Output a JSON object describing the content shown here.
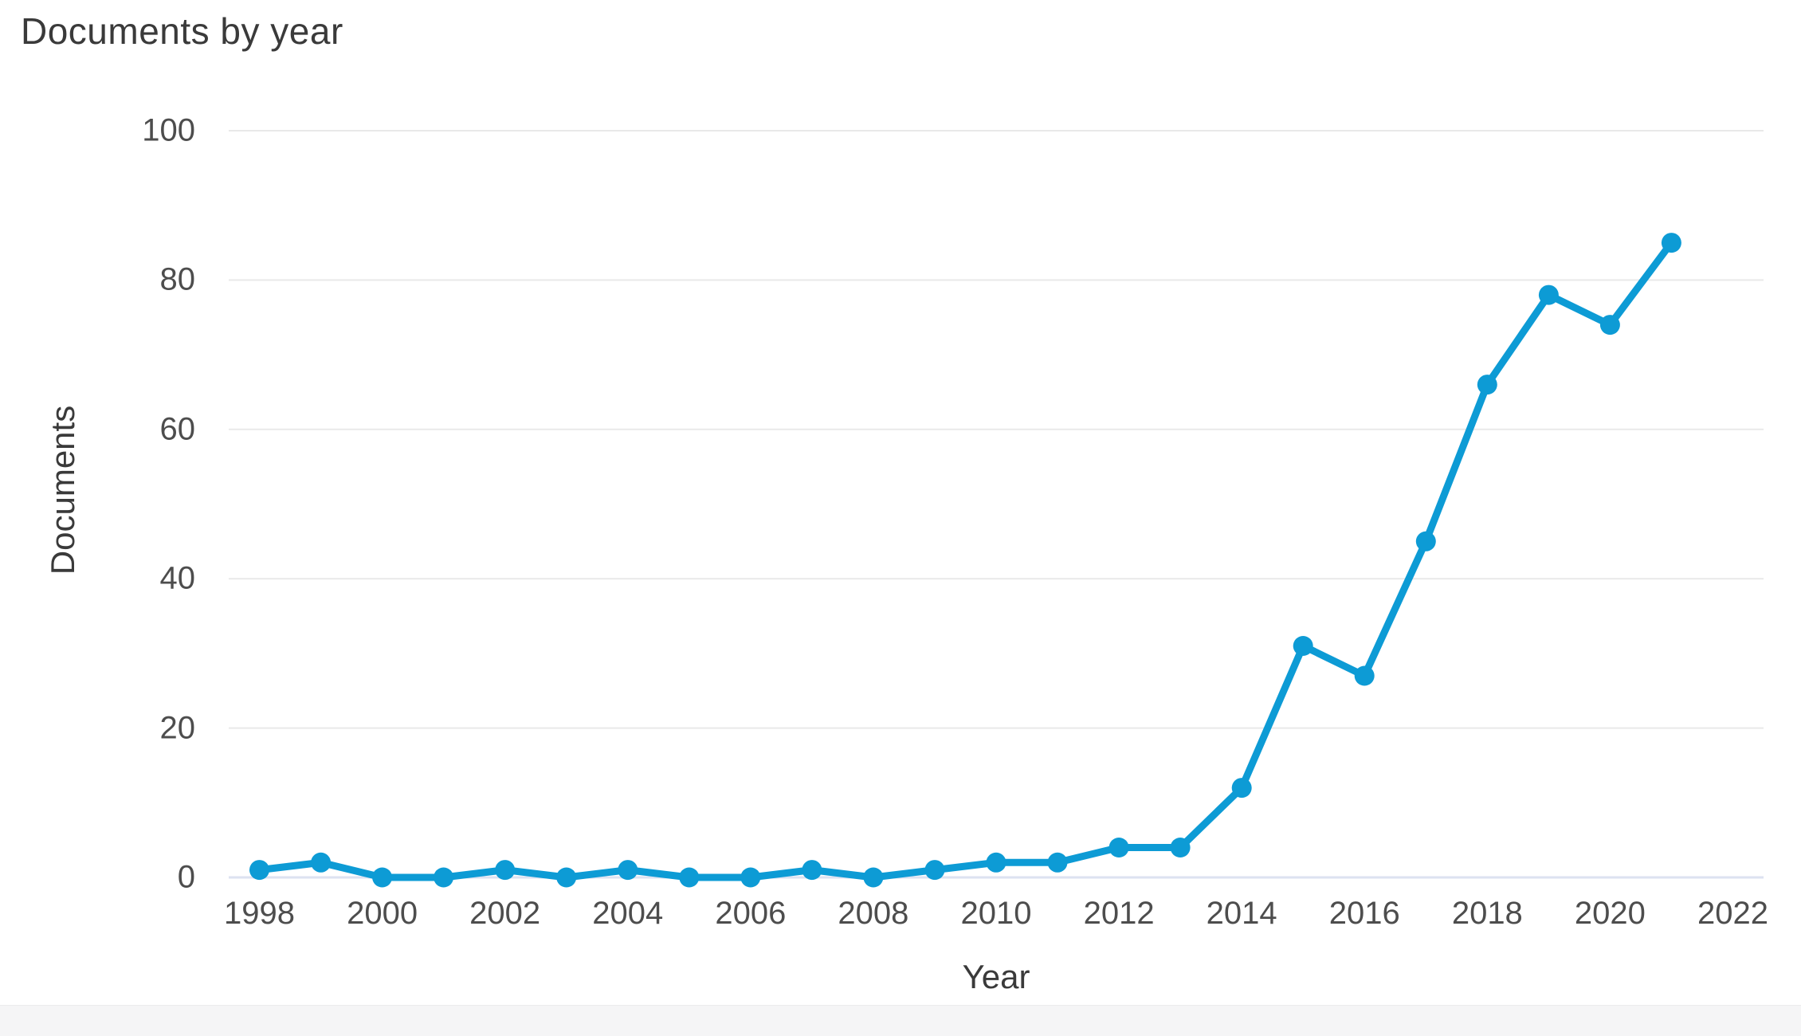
{
  "chart_data": {
    "type": "line",
    "title": "Documents by year",
    "xlabel": "Year",
    "ylabel": "Documents",
    "x": [
      1998,
      1999,
      2000,
      2001,
      2002,
      2003,
      2004,
      2005,
      2006,
      2007,
      2008,
      2009,
      2010,
      2011,
      2012,
      2013,
      2014,
      2015,
      2016,
      2017,
      2018,
      2019,
      2020,
      2021
    ],
    "values": [
      1,
      2,
      0,
      0,
      1,
      0,
      1,
      0,
      0,
      1,
      0,
      1,
      2,
      2,
      4,
      4,
      12,
      31,
      27,
      45,
      66,
      78,
      74,
      85
    ],
    "x_ticks": [
      1998,
      2000,
      2002,
      2004,
      2006,
      2008,
      2010,
      2012,
      2014,
      2016,
      2018,
      2020,
      2022
    ],
    "y_ticks": [
      0,
      20,
      40,
      60,
      80,
      100
    ],
    "xlim": [
      1997.5,
      2022.5
    ],
    "ylim": [
      0,
      100
    ],
    "grid": "horizontal",
    "legend_position": "none",
    "marker": "circle"
  },
  "colors": {
    "line": "#0d9bd5",
    "marker": "#0d9bd5",
    "gridline": "#e9e9e9",
    "zero_line": "#dde2f1",
    "title_text": "#3a3a3a",
    "tick_text": "#4d4d4d",
    "footer_band": "#f5f5f6"
  }
}
